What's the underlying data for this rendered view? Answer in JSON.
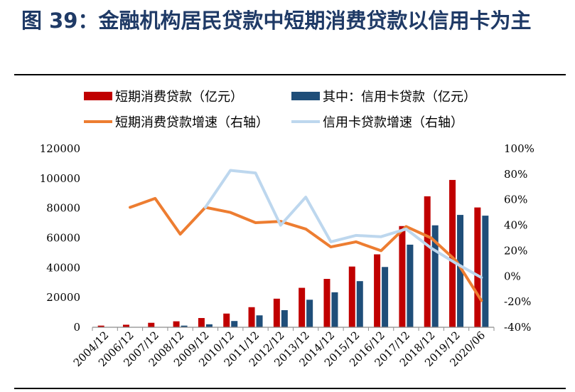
{
  "title": "图 39：金融机构居民贷款中短期消费贷款以信用卡为主",
  "legend": [
    {
      "label": "短期消费贷款（亿元）",
      "color": "#c00000",
      "kind": "bar"
    },
    {
      "label": "其中：信用卡贷款（亿元）",
      "color": "#1f4e79",
      "kind": "bar"
    },
    {
      "label": "短期消费贷款增速（右轴）",
      "color": "#ed7d31",
      "kind": "line"
    },
    {
      "label": "信用卡贷款增速（右轴）",
      "color": "#bdd7ee",
      "kind": "line"
    }
  ],
  "chart_data": {
    "type": "bar",
    "categories": [
      "2004/12",
      "2006/12",
      "2007/12",
      "2008/12",
      "2009/12",
      "2010/12",
      "2011/12",
      "2012/12",
      "2013/12",
      "2014/12",
      "2015/12",
      "2016/12",
      "2017/12",
      "2018/12",
      "2019/12",
      "2020/06"
    ],
    "series": [
      {
        "name": "短期消费贷款（亿元）",
        "type": "bar",
        "axis": "left",
        "color": "#c00000",
        "values": [
          1100,
          1700,
          3000,
          4000,
          6200,
          9200,
          13500,
          19200,
          26500,
          32500,
          40800,
          49000,
          68000,
          88000,
          99000,
          80500
        ]
      },
      {
        "name": "其中：信用卡贷款（亿元）",
        "type": "bar",
        "axis": "left",
        "color": "#1f4e79",
        "values": [
          null,
          null,
          null,
          1100,
          2000,
          4200,
          8000,
          11500,
          18500,
          23500,
          31000,
          40500,
          55500,
          68500,
          75500,
          75000
        ]
      },
      {
        "name": "短期消费贷款增速（右轴）",
        "type": "line",
        "axis": "right",
        "color": "#ed7d31",
        "values": [
          null,
          54,
          61,
          33,
          54,
          50,
          42,
          43,
          37,
          23,
          27,
          20,
          39,
          30,
          12,
          -19
        ]
      },
      {
        "name": "信用卡贷款增速（右轴）",
        "type": "line",
        "axis": "right",
        "color": "#bdd7ee",
        "values": [
          null,
          null,
          null,
          null,
          54,
          83,
          81,
          40,
          62,
          27,
          32,
          31,
          37,
          22,
          10,
          -1
        ]
      }
    ],
    "y_left": {
      "min": 0,
      "max": 120000,
      "step": 20000,
      "ticks": [
        "0",
        "20000",
        "40000",
        "60000",
        "80000",
        "100000",
        "120000"
      ]
    },
    "y_right": {
      "min": -40,
      "max": 100,
      "step": 20,
      "ticks": [
        "-40%",
        "-20%",
        "0%",
        "20%",
        "40%",
        "60%",
        "80%",
        "100%"
      ]
    },
    "legend_position": "top",
    "grid": false
  }
}
